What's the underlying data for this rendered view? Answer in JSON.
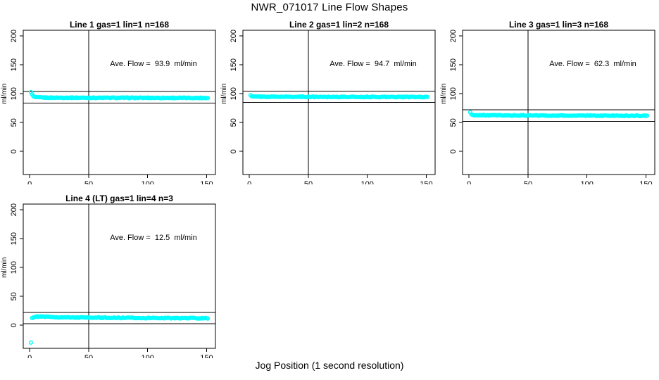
{
  "page": {
    "title": "NWR_071017  Line Flow Shapes",
    "xlabel": "Jog Position (1 second resolution)",
    "background_color": "#ffffff",
    "point_color": "#00ffff",
    "line_color": "#000000"
  },
  "chart_data": [
    {
      "type": "scatter",
      "title": "Line 1 gas=1 lin=1 n=168",
      "ylabel": "ml/min",
      "annotation": "Ave. Flow =  93.9  ml/min",
      "ave_flow": 93.9,
      "x_ticks": [
        0,
        50,
        100,
        150
      ],
      "y_ticks": [
        0,
        50,
        100,
        150,
        200
      ],
      "xlim": [
        -5.5,
        157.5
      ],
      "ylim": [
        -40,
        210
      ],
      "vline_x": 50,
      "hlines": [
        103.9,
        83.9
      ],
      "x_start": 1,
      "x_end": 151,
      "profile": [
        [
          1,
          103
        ],
        [
          2,
          99
        ],
        [
          3,
          96
        ],
        [
          4,
          94.5
        ],
        [
          6,
          93.6
        ],
        [
          15,
          93.2
        ],
        [
          60,
          93.0
        ],
        [
          151,
          92.7
        ]
      ],
      "jitter": 1.4,
      "grid": "off",
      "legend": "none"
    },
    {
      "type": "scatter",
      "title": "Line 2 gas=1 lin=2 n=168",
      "ylabel": "ml/min",
      "annotation": "Ave. Flow =  94.7  ml/min",
      "ave_flow": 94.7,
      "x_ticks": [
        0,
        50,
        100,
        150
      ],
      "y_ticks": [
        0,
        50,
        100,
        150,
        200
      ],
      "xlim": [
        -5.5,
        157.5
      ],
      "ylim": [
        -40,
        210
      ],
      "vline_x": 50,
      "hlines": [
        104.7,
        84.7
      ],
      "x_start": 1,
      "x_end": 151,
      "profile": [
        [
          1,
          97.5
        ],
        [
          2,
          95.6
        ],
        [
          4,
          95.0
        ],
        [
          10,
          94.8
        ],
        [
          60,
          94.6
        ],
        [
          151,
          94.3
        ]
      ],
      "jitter": 1.4,
      "grid": "off",
      "legend": "none"
    },
    {
      "type": "scatter",
      "title": "Line 3 gas=1 lin=3 n=168",
      "ylabel": "ml/min",
      "annotation": "Ave. Flow =  62.3  ml/min",
      "ave_flow": 62.3,
      "x_ticks": [
        0,
        50,
        100,
        150
      ],
      "y_ticks": [
        0,
        50,
        100,
        150,
        200
      ],
      "xlim": [
        -5.5,
        157.5
      ],
      "ylim": [
        -40,
        210
      ],
      "vline_x": 50,
      "hlines": [
        72.3,
        52.3
      ],
      "x_start": 1,
      "x_end": 151,
      "profile": [
        [
          1,
          68
        ],
        [
          2,
          64.2
        ],
        [
          3,
          63.2
        ],
        [
          6,
          62.8
        ],
        [
          30,
          62.4
        ],
        [
          90,
          62.0
        ],
        [
          151,
          61.8
        ]
      ],
      "jitter": 1.4,
      "grid": "off",
      "legend": "none"
    },
    {
      "type": "scatter",
      "title": "Line 4 (LT) gas=1 lin=4 n=3",
      "ylabel": "ml/min",
      "annotation": "Ave. Flow =  12.5  ml/min",
      "ave_flow": 12.5,
      "x_ticks": [
        0,
        50,
        100,
        150
      ],
      "y_ticks": [
        0,
        50,
        100,
        150,
        200
      ],
      "xlim": [
        -5.5,
        157.5
      ],
      "ylim": [
        -40,
        210
      ],
      "vline_x": 50,
      "hlines": [
        22.5,
        2.5
      ],
      "x_start": 1,
      "x_end": 151,
      "profile": [
        [
          1,
          -30
        ],
        [
          2,
          12.5
        ],
        [
          3,
          13.5
        ],
        [
          6,
          15.0
        ],
        [
          12,
          14.8
        ],
        [
          30,
          13.6
        ],
        [
          80,
          12.8
        ],
        [
          151,
          12.2
        ]
      ],
      "jitter": 1.4,
      "grid": "off",
      "legend": "none"
    }
  ]
}
